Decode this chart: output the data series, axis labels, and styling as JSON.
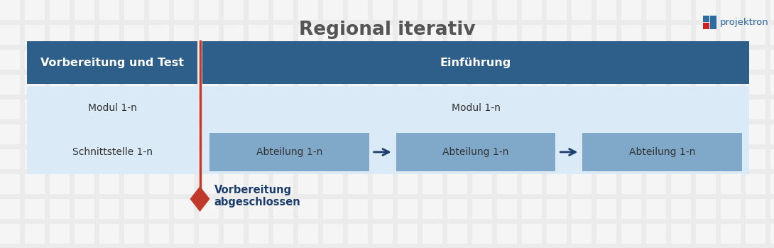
{
  "title": "Regional iterativ",
  "bg_color": "#ebebeb",
  "grid_sq_color": "#ffffff",
  "dark_blue": "#2e5f8a",
  "light_blue_bg": "#daeaf7",
  "medium_blue_box": "#7fa8c9",
  "header_left_label": "Vorbereitung und Test",
  "header_right_label": "Einführung",
  "modul_left": "Modul 1-n",
  "modul_right": "Modul 1-n",
  "schnittstelle": "Schnittstelle 1-n",
  "abteilung": "Abteilung 1-n",
  "milestone_label": "Vorbereitung\nabgeschlossen",
  "milestone_color": "#1a3d6e",
  "projektron_color": "#2d6ca2",
  "red_color": "#c0392b",
  "arrow_color": "#1a3d6e",
  "text_color": "#333333",
  "title_color": "#555555"
}
